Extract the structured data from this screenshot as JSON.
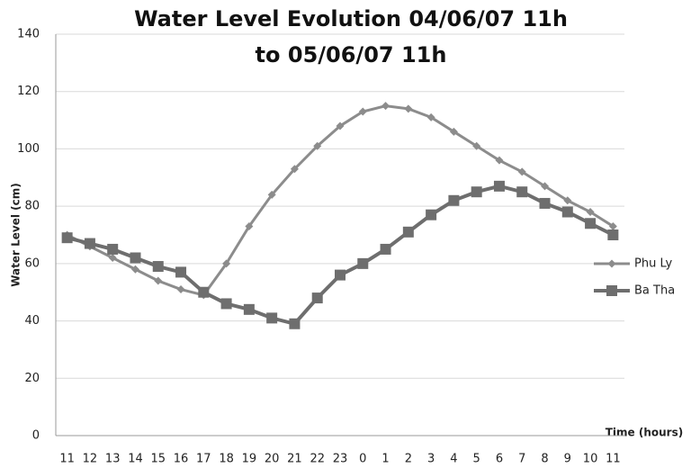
{
  "chart_data": {
    "type": "line",
    "title": [
      "Water Level Evolution 04/06/07 11h",
      "to 05/06/07 11h"
    ],
    "y_label": "Water Level (cm)",
    "x_label": "Time (hours)",
    "categories": [
      "11",
      "12",
      "13",
      "14",
      "15",
      "16",
      "17",
      "18",
      "19",
      "20",
      "21",
      "22",
      "23",
      "0",
      "1",
      "2",
      "3",
      "4",
      "5",
      "6",
      "7",
      "8",
      "9",
      "10",
      "11"
    ],
    "series": [
      {
        "name": "Phu Ly",
        "color": "#8c8c8c",
        "marker": "diamond",
        "values": [
          70,
          66,
          62,
          58,
          54,
          51,
          49,
          60,
          73,
          84,
          93,
          101,
          108,
          113,
          115,
          114,
          111,
          106,
          101,
          96,
          92,
          87,
          82,
          78,
          73
        ]
      },
      {
        "name": "Ba Tha",
        "color": "#6e6e6e",
        "marker": "square",
        "values": [
          69,
          67,
          65,
          62,
          59,
          57,
          50,
          46,
          44,
          41,
          39,
          48,
          56,
          60,
          65,
          71,
          77,
          82,
          85,
          87,
          85,
          81,
          78,
          74,
          70
        ]
      }
    ],
    "ylim": [
      0,
      140
    ],
    "yticks": [
      0,
      20,
      40,
      60,
      80,
      100,
      120,
      140
    ],
    "grid": true,
    "legend": "right"
  }
}
